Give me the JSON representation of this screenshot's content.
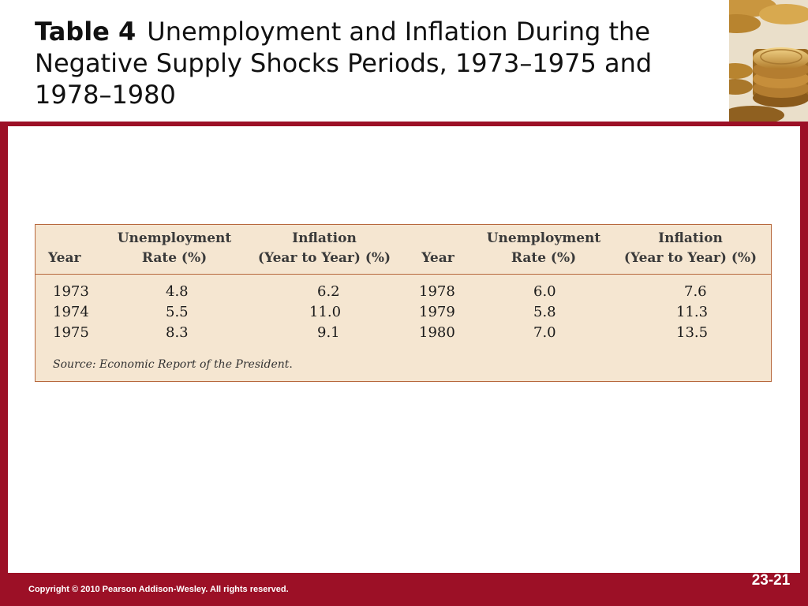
{
  "slide": {
    "title_number": "Table 4",
    "title_text": "Unemployment and Inflation During the Negative Supply Shocks Periods, 1973–1975 and 1978–1980",
    "copyright": "Copyright © 2010 Pearson Addison-Wesley. All rights reserved.",
    "slide_number": "23-21"
  },
  "table": {
    "headers": {
      "year_a": "Year",
      "unemp_a_1": "Unemployment",
      "unemp_a_2": "Rate (%)",
      "infl_a_1": "Inflation",
      "infl_a_2": "(Year to Year) (%)",
      "year_b": "Year",
      "unemp_b_1": "Unemployment",
      "unemp_b_2": "Rate (%)",
      "infl_b_1": "Inflation",
      "infl_b_2": "(Year to Year) (%)"
    },
    "rows": [
      [
        "1973",
        "4.8",
        "6.2",
        "1978",
        "6.0",
        "7.6"
      ],
      [
        "1974",
        "5.5",
        "11.0",
        "1979",
        "5.8",
        "11.3"
      ],
      [
        "1975",
        "8.3",
        "9.1",
        "1980",
        "7.0",
        "13.5"
      ]
    ],
    "source_label": "Source:",
    "source_title": "Economic Report of the President"
  },
  "colors": {
    "frame": "#9c1026",
    "table_background": "#f5e6d1",
    "table_rule": "#b7683d"
  }
}
